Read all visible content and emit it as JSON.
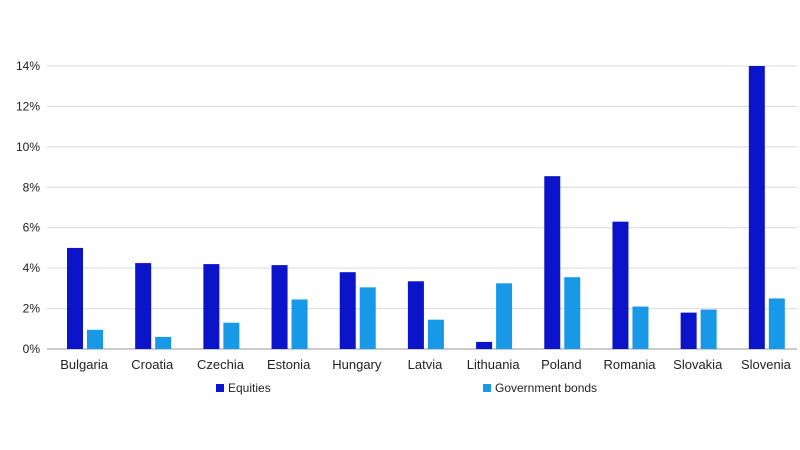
{
  "chart_data": {
    "type": "bar",
    "categories": [
      "Bulgaria",
      "Croatia",
      "Czechia",
      "Estonia",
      "Hungary",
      "Latvia",
      "Lithuania",
      "Poland",
      "Romania",
      "Slovakia",
      "Slovenia"
    ],
    "series": [
      {
        "name": "Equities",
        "color": "#0b14c8",
        "values": [
          5.0,
          4.25,
          4.2,
          4.15,
          3.8,
          3.35,
          0.35,
          8.55,
          6.3,
          1.8,
          14.0
        ]
      },
      {
        "name": "Government bonds",
        "color": "#1799e8",
        "values": [
          0.95,
          0.6,
          1.3,
          2.45,
          3.05,
          1.45,
          3.25,
          3.55,
          2.1,
          1.95,
          2.5
        ]
      }
    ],
    "ylim": [
      0,
      14
    ],
    "yticks": [
      "0%",
      "2%",
      "4%",
      "6%",
      "8%",
      "10%",
      "12%",
      "14%"
    ],
    "grid": true,
    "legend_position": "bottom"
  }
}
